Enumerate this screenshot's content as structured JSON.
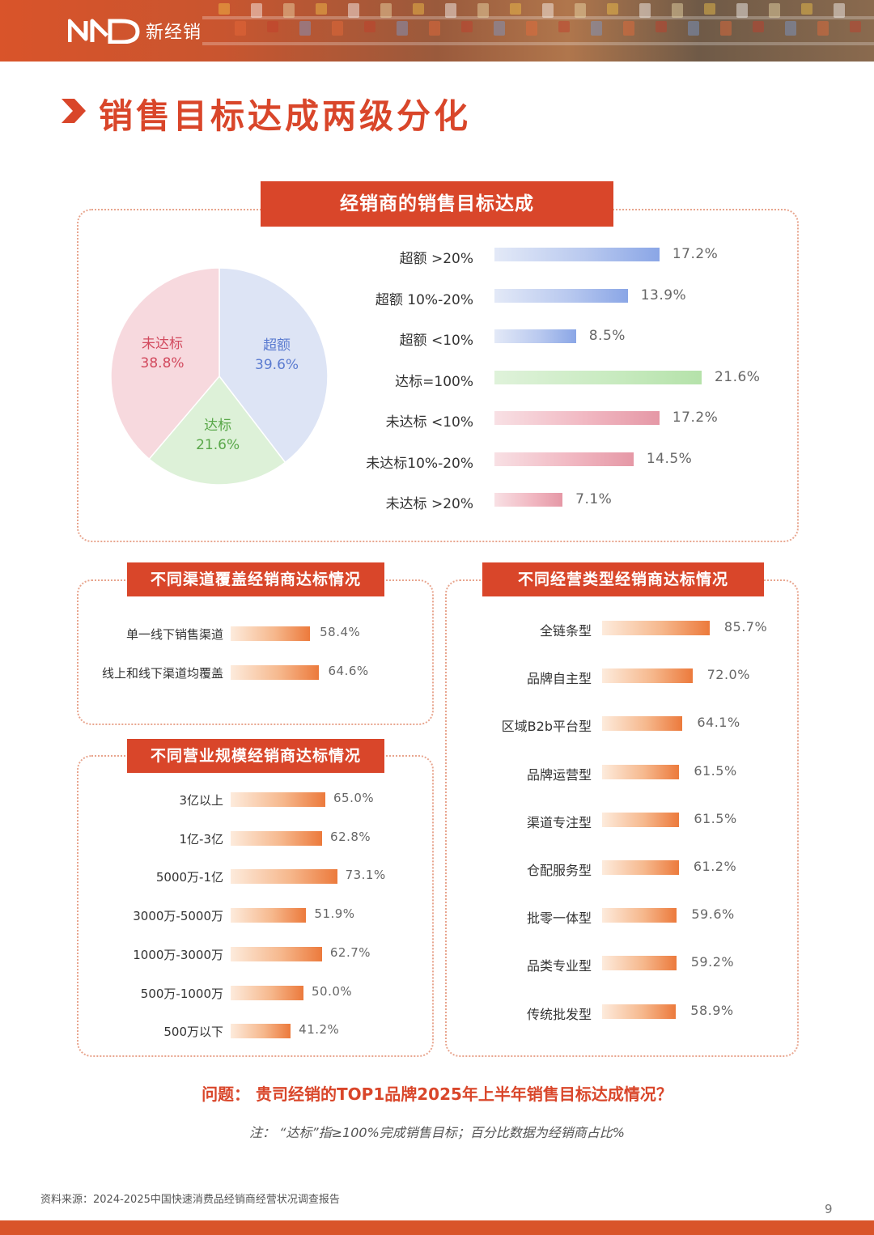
{
  "header": {
    "logo_text": "新经销"
  },
  "page_title": "销售目标达成两级分化",
  "colors": {
    "accent": "#d9462a",
    "exceed": "#8aa6e6",
    "reach": "#bfe6b4",
    "miss": "#e7a3b0",
    "orange_bar": "#f08a50"
  },
  "main_panel": {
    "title": "经销商的销售目标达成"
  },
  "channel_panel": {
    "title": "不同渠道覆盖经销商达标情况"
  },
  "scale_panel": {
    "title": "不同营业规模经销商达标情况"
  },
  "type_panel": {
    "title": "不同经营类型经销商达标情况"
  },
  "chart_data": [
    {
      "type": "pie",
      "categories": [
        "超额",
        "达标",
        "未达标"
      ],
      "values": [
        39.6,
        21.6,
        38.8
      ],
      "value_labels": [
        "39.6%",
        "21.6%",
        "38.8%"
      ],
      "colors": [
        "#dde4f5",
        "#ddf1d8",
        "#f7d9de"
      ]
    },
    {
      "type": "bar",
      "orientation": "horizontal",
      "categories": [
        "超额 >20%",
        "超额 10%-20%",
        "超额 <10%",
        "达标=100%",
        "未达标 <10%",
        "未达标10%-20%",
        "未达标 >20%"
      ],
      "values": [
        17.2,
        13.9,
        8.5,
        21.6,
        17.2,
        14.5,
        7.1
      ],
      "value_labels": [
        "17.2%",
        "13.9%",
        "8.5%",
        "21.6%",
        "17.2%",
        "14.5%",
        "7.1%"
      ],
      "groups": [
        "exceed",
        "exceed",
        "exceed",
        "reach",
        "miss",
        "miss",
        "miss"
      ]
    },
    {
      "type": "bar",
      "orientation": "horizontal",
      "categories": [
        "单一线下销售渠道",
        "线上和线下渠道均覆盖"
      ],
      "values": [
        58.4,
        64.6
      ],
      "value_labels": [
        "58.4%",
        "64.6%"
      ]
    },
    {
      "type": "bar",
      "orientation": "horizontal",
      "categories": [
        "3亿以上",
        "1亿-3亿",
        "5000万-1亿",
        "3000万-5000万",
        "1000万-3000万",
        "500万-1000万",
        "500万以下"
      ],
      "values": [
        65.0,
        62.8,
        73.1,
        51.9,
        62.7,
        50.0,
        41.2
      ],
      "value_labels": [
        "65.0%",
        "62.8%",
        "73.1%",
        "51.9%",
        "62.7%",
        "50.0%",
        "41.2%"
      ]
    },
    {
      "type": "bar",
      "orientation": "horizontal",
      "categories": [
        "全链条型",
        "品牌自主型",
        "区域B2b平台型",
        "品牌运营型",
        "渠道专注型",
        "仓配服务型",
        "批零一体型",
        "品类专业型",
        "传统批发型"
      ],
      "values": [
        85.7,
        72.0,
        64.1,
        61.5,
        61.5,
        61.2,
        59.6,
        59.2,
        58.9
      ],
      "value_labels": [
        "85.7%",
        "72.0%",
        "64.1%",
        "61.5%",
        "61.5%",
        "61.2%",
        "59.6%",
        "59.2%",
        "58.9%"
      ]
    }
  ],
  "question": "问题： 贵司经销的TOP1品牌2025年上半年销售目标达成情况？",
  "note": "注： “达标”指≥100%完成销售目标；百分比数据为经销商占比%",
  "source": "资料来源：2024-2025中国快速消费品经销商经营状况调查报告",
  "page_number": "9"
}
